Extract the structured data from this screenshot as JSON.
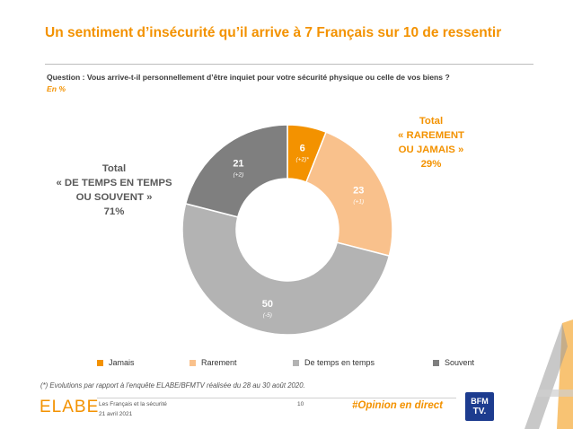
{
  "title": "Un sentiment d’insécurité qu’il arrive à 7 Français sur 10 de ressentir",
  "question": "Question : Vous arrive-t-il personnellement d’être inquiet pour votre sécurité physique ou celle de vos biens ?",
  "unit": "En %",
  "totals": {
    "left": [
      "Total",
      "« DE TEMPS EN TEMPS",
      "OU SOUVENT »",
      "71%"
    ],
    "right": [
      "Total",
      "« RAREMENT",
      "OU JAMAIS »",
      "29%"
    ]
  },
  "colors": {
    "accent": "#f39200",
    "jamais": "#f39200",
    "rarement": "#f9c18c",
    "de_temps_en_temps": "#b3b3b3",
    "souvent": "#7f7f7f",
    "total_left": "#595959",
    "total_right": "#f39200"
  },
  "chart_data": {
    "type": "pie",
    "donut": true,
    "categories": [
      "Jamais",
      "Rarement",
      "De temps en temps",
      "Souvent"
    ],
    "values": [
      6,
      23,
      50,
      21
    ],
    "changes": [
      "(+2)*",
      "(+1)",
      "(-5)",
      "(+2)"
    ],
    "legend_position": "bottom"
  },
  "footnote": "(*) Evolutions par rapport à l’enquête ELABE/BFMTV réalisée du 28 au 30 août 2020.",
  "footer": {
    "logo": "ELABE",
    "study": "Les Français et la sécurité",
    "date": "21 avril 2021",
    "page": "10",
    "hashtag": "#Opinion en direct",
    "partner_logo_top": "BFM",
    "partner_logo_bottom": "TV."
  }
}
